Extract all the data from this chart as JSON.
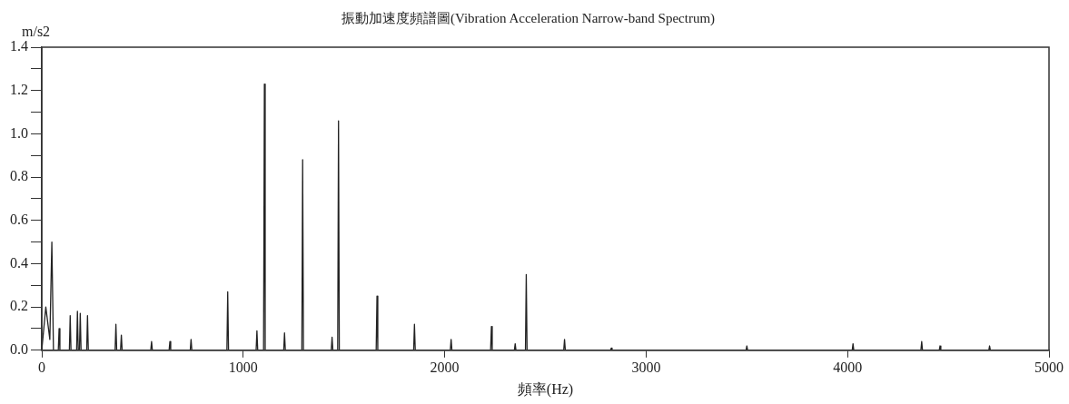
{
  "chart_data": {
    "type": "line",
    "title": "振動加速度頻譜圖(Vibration Acceleration Narrow-band Spectrum)",
    "xlabel": "頻率(Hz)",
    "ylabel": "m/s2",
    "xlim": [
      0,
      5000
    ],
    "xticks": [
      0,
      1000,
      2000,
      3000,
      4000,
      5000
    ],
    "ylim": [
      0,
      1.4
    ],
    "yticks": [
      {
        "value": 0,
        "label": "0.0"
      },
      {
        "value": 0.1,
        "label": null
      },
      {
        "value": 0.2,
        "label": "0.2"
      },
      {
        "value": 0.3,
        "label": null
      },
      {
        "value": 0.4,
        "label": "0.4"
      },
      {
        "value": 0.5,
        "label": null
      },
      {
        "value": 0.6,
        "label": "0.6"
      },
      {
        "value": 0.7,
        "label": null
      },
      {
        "value": 0.8,
        "label": "0.8"
      },
      {
        "value": 0.9,
        "label": null
      },
      {
        "value": 1.0,
        "label": "1.0"
      },
      {
        "value": 1.1,
        "label": null
      },
      {
        "value": 1.2,
        "label": "1.2"
      },
      {
        "value": 1.3,
        "label": null
      },
      {
        "value": 1.4,
        "label": "1.4"
      }
    ],
    "grid": false,
    "legend": false,
    "marker": "none",
    "line_style": "solid",
    "series": [
      {
        "color": "#222222",
        "x": [
          0,
          20,
          40,
          50,
          58,
          82,
          86,
          90,
          137,
          141,
          145,
          173,
          177,
          181,
          187,
          191,
          195,
          223,
          227,
          231,
          364,
          368,
          372,
          391,
          395,
          399,
          541,
          545,
          549,
          632,
          636,
          640,
          737,
          741,
          745,
          919,
          923,
          927,
          1064,
          1068,
          1072,
          1101,
          1105,
          1109,
          1201,
          1205,
          1209,
          1291,
          1295,
          1299,
          1437,
          1441,
          1445,
          1469,
          1473,
          1477,
          1660,
          1664,
          1668,
          1846,
          1850,
          1854,
          2028,
          2032,
          2036,
          2228,
          2232,
          2236,
          2346,
          2350,
          2354,
          2401,
          2405,
          2409,
          2591,
          2595,
          2599,
          2823,
          2827,
          2831,
          3496,
          3500,
          3504,
          4023,
          4027,
          4031,
          4364,
          4368,
          4372,
          4455,
          4459,
          4463,
          4701,
          4705,
          4709,
          5000
        ],
        "values": [
          0,
          0.2,
          0.05,
          0.5,
          0,
          0,
          0.1,
          0,
          0,
          0.16,
          0,
          0,
          0.18,
          0,
          0,
          0.17,
          0,
          0,
          0.16,
          0,
          0,
          0.12,
          0,
          0,
          0.07,
          0,
          0,
          0.04,
          0,
          0,
          0.04,
          0,
          0,
          0.05,
          0,
          0,
          0.27,
          0,
          0,
          0.09,
          0,
          0,
          1.23,
          0,
          0,
          0.08,
          0,
          0,
          0.88,
          0,
          0,
          0.06,
          0,
          0,
          1.06,
          0,
          0,
          0.25,
          0,
          0,
          0.12,
          0,
          0,
          0.05,
          0,
          0,
          0.11,
          0,
          0,
          0.03,
          0,
          0,
          0.35,
          0,
          0,
          0.05,
          0,
          0,
          0.01,
          0,
          0,
          0.02,
          0,
          0,
          0.03,
          0,
          0,
          0.04,
          0,
          0,
          0.02,
          0,
          0,
          0.02,
          0,
          0
        ]
      }
    ]
  }
}
